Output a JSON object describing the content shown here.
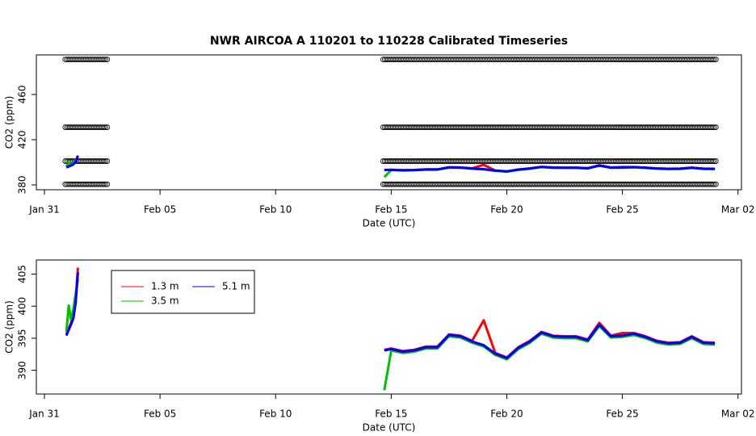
{
  "chart_data": [
    {
      "type": "line",
      "title": "NWR   AIRCOA  A   110201  to  110228   Calibrated Timeseries",
      "xlabel": "Date (UTC)",
      "ylabel": "CO2 (ppm)",
      "x": [
        31.95,
        32.05,
        32.15,
        32.25,
        32.35,
        32.45,
        39,
        45.7,
        46.0,
        46.5,
        47.0,
        47.5,
        48.0,
        48.5,
        49.0,
        49.5,
        50.0,
        50.5,
        51.0,
        51.5,
        52.0,
        52.5,
        53.0,
        53.5,
        54.0,
        54.5,
        55.0,
        55.5,
        56.0,
        56.5,
        57.0,
        57.5,
        58.0,
        58.5,
        59.0,
        59.5,
        60.0
      ],
      "xlim": [
        30.65,
        61.15
      ],
      "xticks": [
        {
          "value": 31,
          "label": "Jan 31"
        },
        {
          "value": 36,
          "label": "Feb 05"
        },
        {
          "value": 41,
          "label": "Feb 10"
        },
        {
          "value": 46,
          "label": "Feb 15"
        },
        {
          "value": 51,
          "label": "Feb 20"
        },
        {
          "value": 56,
          "label": "Feb 25"
        },
        {
          "value": 61,
          "label": "Mar 02"
        }
      ],
      "ylim": [
        375.7,
        495
      ],
      "yticks": [
        380,
        420,
        460
      ],
      "standards": {
        "color": "#000000",
        "levels": [
          380.5,
          401,
          431,
          491
        ],
        "ranges": [
          [
            31.9,
            33.75
          ],
          [
            45.65,
            60.1
          ]
        ]
      },
      "series": [
        {
          "color": "#ff0000",
          "values": [
            395.6,
            396.5,
            397.4,
            398.6,
            401.2,
            406.0,
            null,
            393.2,
            393.4,
            393.0,
            393.2,
            393.7,
            393.7,
            395.6,
            395.4,
            394.6,
            397.8,
            392.7,
            392.0,
            393.6,
            394.6,
            396.0,
            395.4,
            395.3,
            395.3,
            394.8,
            397.4,
            395.4,
            395.8,
            395.8,
            395.3,
            394.6,
            394.3,
            394.4,
            395.3,
            394.4,
            394.3
          ]
        },
        {
          "color": "#00c000",
          "values": [
            396.0,
            400.1,
            397.9,
            399.5,
            402.0,
            404.2,
            null,
            386.9,
            393.1,
            392.7,
            392.9,
            393.4,
            393.4,
            395.3,
            395.1,
            394.3,
            393.7,
            392.4,
            391.7,
            393.3,
            394.3,
            395.7,
            395.1,
            395.0,
            395.0,
            394.5,
            396.9,
            395.1,
            395.2,
            395.5,
            395.0,
            394.3,
            394.0,
            394.1,
            395.0,
            394.1,
            394.0
          ]
        },
        {
          "color": "#0000ff",
          "values": [
            395.4,
            396.3,
            397.1,
            398.1,
            400.5,
            405.3,
            null,
            393.1,
            393.3,
            392.9,
            393.1,
            393.6,
            393.6,
            395.5,
            395.3,
            394.5,
            393.9,
            392.6,
            391.9,
            393.5,
            394.5,
            395.9,
            395.3,
            395.2,
            395.2,
            394.7,
            397.1,
            395.3,
            395.4,
            395.7,
            395.2,
            394.5,
            394.2,
            394.3,
            395.2,
            394.3,
            394.2
          ]
        }
      ]
    },
    {
      "type": "line",
      "xlabel": "Date (UTC)",
      "ylabel": "CO2 (ppm)",
      "x": [
        31.95,
        32.05,
        32.15,
        32.25,
        32.35,
        32.45,
        39,
        45.7,
        46.0,
        46.5,
        47.0,
        47.5,
        48.0,
        48.5,
        49.0,
        49.5,
        50.0,
        50.5,
        51.0,
        51.5,
        52.0,
        52.5,
        53.0,
        53.5,
        54.0,
        54.5,
        55.0,
        55.5,
        56.0,
        56.5,
        57.0,
        57.5,
        58.0,
        58.5,
        59.0,
        59.5,
        60.0
      ],
      "xlim": [
        30.65,
        61.15
      ],
      "xticks": [
        {
          "value": 31,
          "label": "Jan 31"
        },
        {
          "value": 36,
          "label": "Feb 05"
        },
        {
          "value": 41,
          "label": "Feb 10"
        },
        {
          "value": 46,
          "label": "Feb 15"
        },
        {
          "value": 51,
          "label": "Feb 20"
        },
        {
          "value": 56,
          "label": "Feb 25"
        },
        {
          "value": 61,
          "label": "Mar 02"
        }
      ],
      "ylim": [
        386.3,
        407.2
      ],
      "yticks": [
        390,
        395,
        400,
        405
      ],
      "legend": "top-left",
      "series": [
        {
          "name": "1.3 m",
          "color": "#ff0000",
          "values": [
            395.6,
            396.5,
            397.4,
            398.6,
            401.2,
            406.0,
            null,
            393.2,
            393.4,
            393.0,
            393.2,
            393.7,
            393.7,
            395.6,
            395.4,
            394.6,
            397.8,
            392.7,
            392.0,
            393.6,
            394.6,
            396.0,
            395.4,
            395.3,
            395.3,
            394.8,
            397.4,
            395.4,
            395.8,
            395.8,
            395.3,
            394.6,
            394.3,
            394.4,
            395.3,
            394.4,
            394.3
          ]
        },
        {
          "name": "3.5 m",
          "color": "#00c000",
          "values": [
            396.0,
            400.1,
            397.9,
            399.5,
            402.0,
            404.2,
            null,
            386.9,
            393.1,
            392.7,
            392.9,
            393.4,
            393.4,
            395.3,
            395.1,
            394.3,
            393.7,
            392.4,
            391.7,
            393.3,
            394.3,
            395.7,
            395.1,
            395.0,
            395.0,
            394.5,
            396.9,
            395.1,
            395.2,
            395.5,
            395.0,
            394.3,
            394.0,
            394.1,
            395.0,
            394.1,
            394.0
          ]
        },
        {
          "name": "5.1 m",
          "color": "#0000ff",
          "values": [
            395.4,
            396.3,
            397.1,
            398.1,
            400.5,
            405.3,
            null,
            393.1,
            393.3,
            392.9,
            393.1,
            393.6,
            393.6,
            395.5,
            395.3,
            394.5,
            393.9,
            392.6,
            391.9,
            393.5,
            394.5,
            395.9,
            395.3,
            395.2,
            395.2,
            394.7,
            397.1,
            395.3,
            395.4,
            395.7,
            395.2,
            394.5,
            394.2,
            394.3,
            395.2,
            394.3,
            394.2
          ]
        }
      ]
    }
  ]
}
